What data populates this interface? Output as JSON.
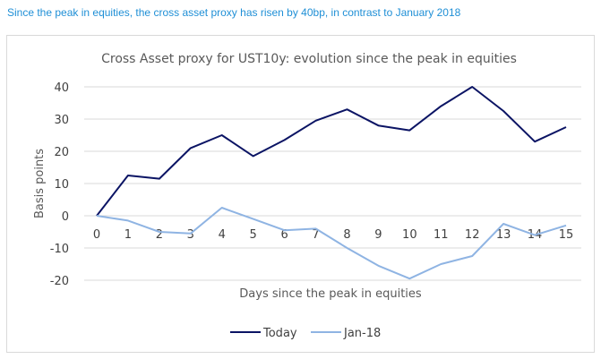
{
  "headline": "Since the peak in equities, the cross asset proxy has risen by 40bp, in contrast to January 2018",
  "colors": {
    "headline": "#1f8fd6",
    "today": "#0b1464",
    "jan18": "#8fb4e3",
    "grid": "#d9d9d9",
    "text": "#404040"
  },
  "chart_data": {
    "type": "line",
    "title": "Cross Asset proxy for UST10y: evolution since the peak in equities",
    "xlabel": "Days since the peak in equities",
    "ylabel": "Basis points",
    "x": [
      0,
      1,
      2,
      3,
      4,
      5,
      6,
      7,
      8,
      9,
      10,
      11,
      12,
      13,
      14,
      15
    ],
    "x_tick_labels": [
      "0",
      "1",
      "2",
      "3",
      "4",
      "5",
      "6",
      "7",
      "8",
      "9",
      "10",
      "11",
      "12",
      "13",
      "14",
      "15"
    ],
    "ylim": [
      -20,
      40
    ],
    "y_ticks": [
      -20,
      -10,
      0,
      10,
      20,
      30,
      40
    ],
    "y_tick_labels": [
      "-20",
      "-10",
      "0",
      "10",
      "20",
      "30",
      "40"
    ],
    "grid": "horizontal",
    "legend_position": "bottom",
    "series": [
      {
        "name": "Today",
        "color": "#0b1464",
        "values": [
          0,
          12.5,
          11.5,
          21,
          25,
          18.5,
          23.5,
          29.5,
          33,
          28,
          26.5,
          34,
          40,
          32.5,
          23,
          27.5
        ]
      },
      {
        "name": "Jan-18",
        "color": "#8fb4e3",
        "values": [
          0,
          -1.5,
          -5,
          -5.5,
          2.5,
          -1,
          -4.5,
          -4,
          -10,
          -15.5,
          -19.5,
          -15,
          -12.5,
          -2.5,
          -6,
          -3
        ]
      }
    ]
  }
}
